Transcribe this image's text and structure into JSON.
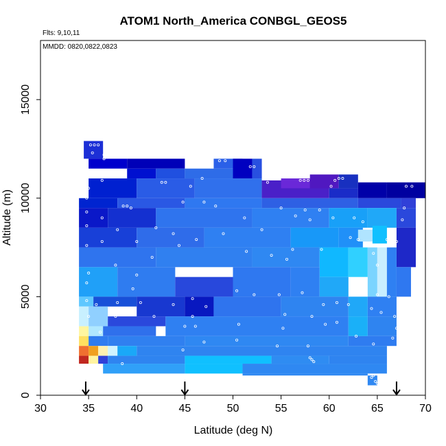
{
  "chart_data": {
    "type": "heatmap",
    "title": "ATOM1 North_America CONBGL_GEOS5",
    "subtitle": "Flts: 9,10,11",
    "annotation": "MMDD: 0820,0822,0823",
    "xlabel": "Latitude (deg N)",
    "ylabel": "Altitude (m)",
    "xlim": [
      30,
      70
    ],
    "ylim": [
      0,
      18000
    ],
    "xticks": [
      "30",
      "35",
      "40",
      "45",
      "50",
      "55",
      "60",
      "65",
      "70"
    ],
    "yticks": [
      "0",
      "5000",
      "10000",
      "15000"
    ],
    "grid": false,
    "arrows": [
      34.7,
      45.0,
      67.0
    ],
    "cells": [
      [
        34.5,
        36.5,
        12000,
        12900,
        "#1c2fd6"
      ],
      [
        35.0,
        39.0,
        11500,
        12000,
        "#0000cc"
      ],
      [
        39.0,
        45.0,
        11500,
        12000,
        "#0000b8"
      ],
      [
        39.0,
        42.0,
        11000,
        11500,
        "#0010d0"
      ],
      [
        42.0,
        45.0,
        11000,
        11500,
        "#2050e0"
      ],
      [
        45.0,
        50.0,
        11000,
        11500,
        "#2e6ce8"
      ],
      [
        48.0,
        51.0,
        11500,
        12000,
        "#2a60e8"
      ],
      [
        50.0,
        52.0,
        11000,
        12000,
        "#0000c0"
      ],
      [
        52.0,
        53.0,
        11000,
        12000,
        "#2850e0"
      ],
      [
        35.0,
        40.0,
        10000,
        11000,
        "#0020d0"
      ],
      [
        40.0,
        46.0,
        10000,
        11000,
        "#2a5ce6"
      ],
      [
        46.0,
        53.0,
        10000,
        11000,
        "#3070ec"
      ],
      [
        53.0,
        60.0,
        10000,
        10900,
        "#4a20c8"
      ],
      [
        55.0,
        58.0,
        10500,
        11000,
        "#6a28d8"
      ],
      [
        58.0,
        61.0,
        10500,
        11200,
        "#5018c0"
      ],
      [
        61.0,
        63.0,
        10500,
        11200,
        "#1830c0"
      ],
      [
        60.0,
        63.0,
        10000,
        10500,
        "#1a2cc8"
      ],
      [
        63.0,
        66.0,
        10000,
        10800,
        "#0000a8"
      ],
      [
        66.0,
        70.0,
        10000,
        10800,
        "#0000a0"
      ],
      [
        34.0,
        38.0,
        9500,
        10000,
        "#0024d0"
      ],
      [
        38.0,
        45.0,
        9500,
        10000,
        "#2a58e4"
      ],
      [
        45.0,
        53.0,
        9500,
        10000,
        "#2f78f0"
      ],
      [
        53.0,
        63.0,
        9500,
        10000,
        "#2e60e4"
      ],
      [
        63.0,
        67.5,
        9500,
        10000,
        "#2a48dc"
      ],
      [
        67.5,
        69.0,
        9500,
        10000,
        "#3040d8"
      ],
      [
        34.0,
        37.0,
        8500,
        9500,
        "#0a18c8"
      ],
      [
        37.0,
        42.0,
        8500,
        9500,
        "#1430d0"
      ],
      [
        42.0,
        52.0,
        8500,
        9500,
        "#2f74ee"
      ],
      [
        52.0,
        60.0,
        8500,
        9500,
        "#2f80f2"
      ],
      [
        60.0,
        64.0,
        8500,
        9500,
        "#18a0f8"
      ],
      [
        64.0,
        67.0,
        8500,
        9500,
        "#20a8f8"
      ],
      [
        67.0,
        69.0,
        8500,
        9500,
        "#2a48dc"
      ],
      [
        34.0,
        40.0,
        7500,
        8500,
        "#1840d8"
      ],
      [
        40.0,
        47.0,
        7500,
        8500,
        "#2f6cea"
      ],
      [
        47.0,
        56.0,
        7500,
        8500,
        "#2f80f2"
      ],
      [
        56.0,
        61.0,
        7500,
        8500,
        "#1898f8"
      ],
      [
        61.0,
        63.5,
        7500,
        8500,
        "#2090f8"
      ],
      [
        63.0,
        64.5,
        7800,
        8400,
        "#b0e4ff"
      ],
      [
        64.5,
        66.0,
        7700,
        8600,
        "#10c0ff"
      ],
      [
        67.0,
        69.0,
        6500,
        8500,
        "#1e28c8"
      ],
      [
        34.0,
        42.0,
        6500,
        7500,
        "#2f74ee"
      ],
      [
        42.0,
        52.0,
        6500,
        7500,
        "#3080f0"
      ],
      [
        52.0,
        59.0,
        6500,
        7500,
        "#2f88f2"
      ],
      [
        59.0,
        62.0,
        6000,
        7500,
        "#10b8ff"
      ],
      [
        62.0,
        64.0,
        6000,
        7500,
        "#30d0ff"
      ],
      [
        64.0,
        65.0,
        5000,
        7500,
        "#7ad4ff"
      ],
      [
        65.0,
        66.0,
        5000,
        7500,
        "#c8eeff"
      ],
      [
        66.0,
        67.0,
        5000,
        7500,
        "#2f80f2"
      ],
      [
        67.0,
        68.5,
        5000,
        6500,
        "#2f78f0"
      ],
      [
        34.0,
        38.0,
        5000,
        6500,
        "#20a0f8"
      ],
      [
        38.0,
        44.0,
        5000,
        6500,
        "#2f7cf0"
      ],
      [
        44.0,
        50.0,
        5000,
        6000,
        "#2848dc"
      ],
      [
        50.0,
        56.0,
        5000,
        6500,
        "#2f78f0"
      ],
      [
        56.0,
        59.0,
        5000,
        6500,
        "#2f80f2"
      ],
      [
        59.0,
        62.0,
        5000,
        6000,
        "#20a8f8"
      ],
      [
        34.0,
        35.5,
        4500,
        5000,
        "#60c8ff"
      ],
      [
        35.5,
        40.0,
        4500,
        5000,
        "#1850d8"
      ],
      [
        40.0,
        45.0,
        4000,
        5000,
        "#1838d0"
      ],
      [
        45.0,
        48.0,
        4000,
        5000,
        "#0818c0"
      ],
      [
        48.0,
        55.0,
        4000,
        5000,
        "#2f74ee"
      ],
      [
        55.0,
        62.0,
        4000,
        5000,
        "#2f84f0"
      ],
      [
        62.0,
        64.0,
        4000,
        5000,
        "#20a8f8"
      ],
      [
        64.0,
        67.0,
        4000,
        5000,
        "#2f80f2"
      ],
      [
        34.0,
        35.0,
        3500,
        4500,
        "#c8f0ff"
      ],
      [
        35.0,
        37.0,
        3500,
        4500,
        "#90d0ff"
      ],
      [
        37.0,
        43.0,
        3500,
        4000,
        "#2a48dc"
      ],
      [
        43.0,
        62.0,
        3000,
        4000,
        "#2f80f2"
      ],
      [
        62.0,
        64.0,
        3000,
        4000,
        "#1ab0f8"
      ],
      [
        64.0,
        67.0,
        3000,
        4000,
        "#2f84f0"
      ],
      [
        34.0,
        35.0,
        3000,
        3500,
        "#fff6a0"
      ],
      [
        35.0,
        36.5,
        3000,
        3500,
        "#b0e8ff"
      ],
      [
        36.5,
        42.0,
        3000,
        3500,
        "#2f70ec"
      ],
      [
        34.0,
        35.0,
        2500,
        3000,
        "#ffe060"
      ],
      [
        35.0,
        37.0,
        2500,
        3000,
        "#2f7cf0"
      ],
      [
        37.0,
        45.0,
        2500,
        3000,
        "#3080f0"
      ],
      [
        45.0,
        62.0,
        2500,
        3000,
        "#2f88f2"
      ],
      [
        62.0,
        67.0,
        2500,
        3000,
        "#2f7cf0"
      ],
      [
        34.0,
        35.0,
        2000,
        2500,
        "#f07030"
      ],
      [
        35.0,
        36.0,
        2000,
        2500,
        "#f0a020"
      ],
      [
        36.0,
        37.0,
        2000,
        2500,
        "#fff0b0"
      ],
      [
        37.0,
        38.0,
        2000,
        2500,
        "#d0f4ff"
      ],
      [
        38.0,
        40.0,
        2000,
        2500,
        "#1aa8f8"
      ],
      [
        40.0,
        66.0,
        2000,
        2500,
        "#2f84f0"
      ],
      [
        34.0,
        35.0,
        1600,
        2000,
        "#c02820"
      ],
      [
        35.0,
        36.0,
        1600,
        2000,
        "#fff4a0"
      ],
      [
        36.0,
        37.0,
        1600,
        2000,
        "#3040d8"
      ],
      [
        37.0,
        45.0,
        1600,
        2000,
        "#2f84f0"
      ],
      [
        45.0,
        54.0,
        1600,
        2000,
        "#10c0ff"
      ],
      [
        54.0,
        60.0,
        1600,
        2000,
        "#2f8cf2"
      ],
      [
        60.0,
        66.0,
        1600,
        2000,
        "#2f84f0"
      ],
      [
        36.5,
        45.0,
        1100,
        1600,
        "#30a0f8"
      ],
      [
        45.0,
        51.0,
        1100,
        1600,
        "#10c0ff"
      ],
      [
        51.0,
        66.0,
        1100,
        1600,
        "#2f88f2"
      ],
      [
        51.0,
        64.0,
        1000,
        1100,
        "#2f88f2"
      ],
      [
        64.0,
        65.0,
        500,
        1000,
        "#2f88f2"
      ],
      [
        64.0,
        65.0,
        0,
        500,
        "#ffffff"
      ]
    ],
    "points": [
      [
        35.2,
        12.7
      ],
      [
        35.6,
        12.7
      ],
      [
        36.0,
        12.7
      ],
      [
        36.6,
        12.2
      ],
      [
        36.6,
        12.0
      ],
      [
        35.4,
        12.3
      ],
      [
        48.6,
        11.9
      ],
      [
        49.2,
        11.9
      ],
      [
        51.8,
        11.6
      ],
      [
        52.2,
        11.6
      ],
      [
        36.4,
        11.1
      ],
      [
        36.4,
        10.9
      ],
      [
        42.6,
        10.8
      ],
      [
        43.0,
        10.8
      ],
      [
        45.6,
        10.6
      ],
      [
        46.8,
        11.0
      ],
      [
        53.6,
        10.8
      ],
      [
        57.0,
        10.9
      ],
      [
        57.4,
        10.9
      ],
      [
        57.8,
        10.9
      ],
      [
        60.6,
        10.9
      ],
      [
        61.0,
        11.0
      ],
      [
        61.4,
        11.0
      ],
      [
        60.2,
        10.6
      ],
      [
        68.0,
        10.6
      ],
      [
        68.6,
        10.6
      ],
      [
        35.0,
        10.5
      ],
      [
        34.8,
        10.0
      ],
      [
        38.6,
        9.6
      ],
      [
        39.0,
        9.6
      ],
      [
        39.4,
        9.5
      ],
      [
        44.8,
        9.8
      ],
      [
        47.0,
        9.8
      ],
      [
        48.2,
        9.6
      ],
      [
        55.0,
        9.5
      ],
      [
        57.5,
        9.4
      ],
      [
        59.0,
        9.4
      ],
      [
        56.5,
        9.1
      ],
      [
        34.8,
        9.3
      ],
      [
        36.4,
        9.0
      ],
      [
        51.2,
        9.0
      ],
      [
        58.0,
        8.9
      ],
      [
        60.4,
        9.0
      ],
      [
        62.6,
        9.0
      ],
      [
        63.5,
        8.8
      ],
      [
        67.8,
        9.5
      ],
      [
        67.6,
        8.9
      ],
      [
        34.8,
        8.6
      ],
      [
        38.0,
        8.4
      ],
      [
        42.0,
        8.5
      ],
      [
        43.8,
        8.2
      ],
      [
        46.2,
        7.9
      ],
      [
        49.0,
        8.2
      ],
      [
        53.0,
        8.4
      ],
      [
        62.2,
        8.0
      ],
      [
        63.0,
        7.9
      ],
      [
        66.0,
        7.9
      ],
      [
        66.4,
        7.9
      ],
      [
        67.0,
        7.8
      ],
      [
        34.8,
        7.6
      ],
      [
        36.4,
        7.8
      ],
      [
        40.0,
        7.8
      ],
      [
        44.4,
        7.6
      ],
      [
        56.2,
        7.4
      ],
      [
        59.2,
        7.4
      ],
      [
        64.6,
        7.2
      ],
      [
        51.4,
        7.3
      ],
      [
        54.0,
        7.1
      ],
      [
        41.6,
        7.0
      ],
      [
        37.8,
        6.6
      ],
      [
        35.0,
        6.2
      ],
      [
        55.6,
        6.9
      ],
      [
        65.0,
        6.6
      ],
      [
        40.0,
        6.1
      ],
      [
        34.8,
        5.7
      ],
      [
        39.6,
        5.4
      ],
      [
        50.4,
        5.3
      ],
      [
        52.2,
        5.1
      ],
      [
        54.8,
        5.1
      ],
      [
        57.2,
        5.2
      ],
      [
        59.4,
        4.6
      ],
      [
        60.8,
        4.7
      ],
      [
        62.0,
        4.6
      ],
      [
        63.2,
        5.2
      ],
      [
        65.0,
        5.1
      ],
      [
        66.2,
        5.0
      ],
      [
        34.8,
        4.8
      ],
      [
        35.8,
        4.6
      ],
      [
        38.0,
        4.7
      ],
      [
        40.4,
        4.7
      ],
      [
        43.8,
        4.6
      ],
      [
        45.8,
        4.9
      ],
      [
        47.2,
        4.5
      ],
      [
        35.0,
        4.0
      ],
      [
        37.8,
        4.0
      ],
      [
        41.8,
        4.0
      ],
      [
        45.8,
        4.0
      ],
      [
        55.4,
        4.1
      ],
      [
        58.2,
        4.0
      ],
      [
        60.8,
        3.7
      ],
      [
        64.4,
        4.4
      ],
      [
        65.4,
        4.2
      ],
      [
        66.8,
        4.0
      ],
      [
        45.0,
        3.5
      ],
      [
        46.1,
        3.5
      ],
      [
        50.6,
        3.6
      ],
      [
        55.2,
        3.4
      ],
      [
        59.6,
        3.6
      ],
      [
        62.8,
        3.0
      ],
      [
        67.0,
        3.4
      ],
      [
        36.2,
        3.2
      ],
      [
        50.4,
        2.8
      ],
      [
        66.6,
        2.9
      ],
      [
        47.0,
        2.7
      ],
      [
        54.6,
        2.5
      ],
      [
        57.8,
        2.5
      ],
      [
        44.8,
        2.3
      ],
      [
        58.0,
        1.9
      ],
      [
        58.2,
        1.8
      ],
      [
        64.6,
        2.6
      ],
      [
        38.5,
        1.6
      ],
      [
        58.4,
        1.7
      ],
      [
        64.6,
        1.0
      ],
      [
        64.4,
        0.9
      ],
      [
        65.0,
        0.6
      ],
      [
        64.8,
        0.7
      ]
    ]
  }
}
